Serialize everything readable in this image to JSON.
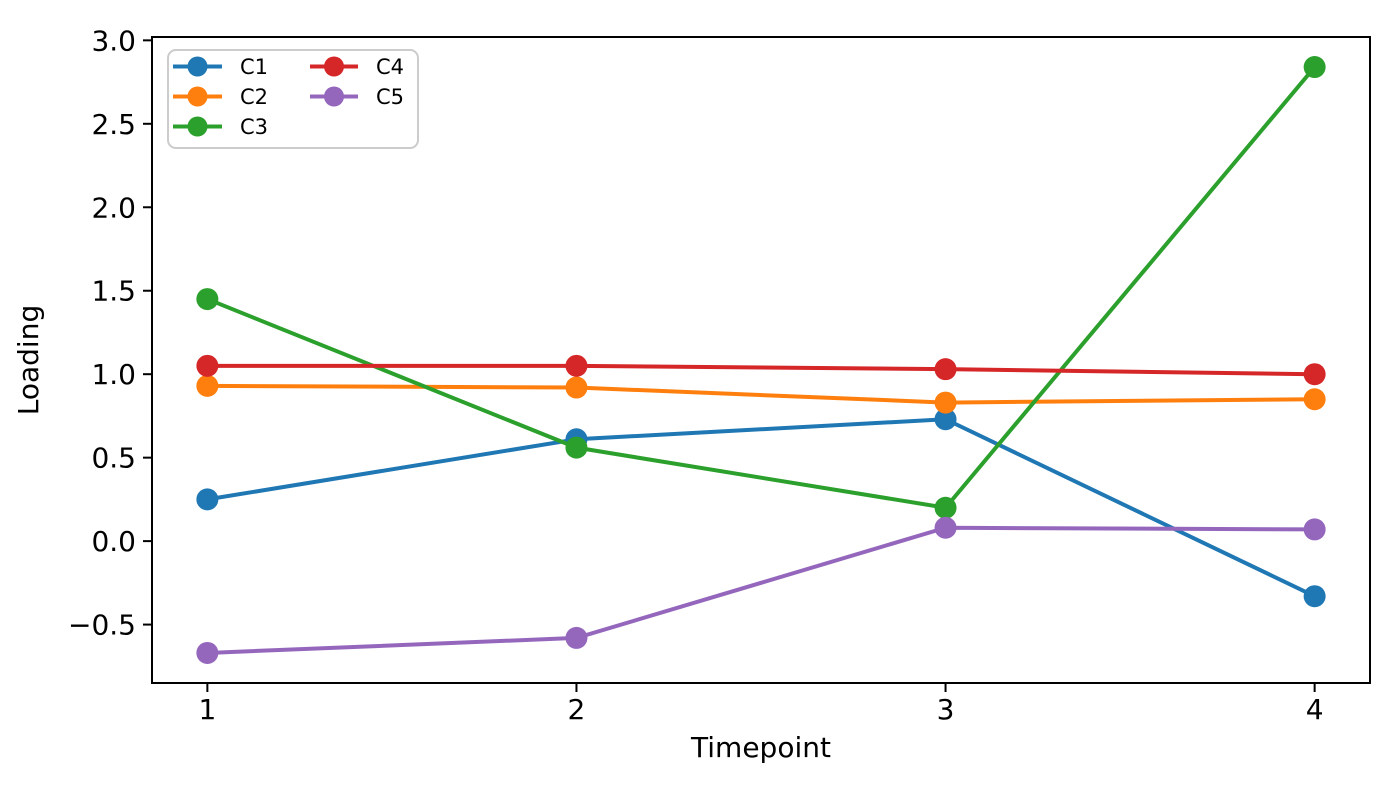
{
  "chart_data": {
    "type": "line",
    "x": [
      1,
      2,
      3,
      4
    ],
    "xlabel": "Timepoint",
    "ylabel": "Loading",
    "xlim": [
      0.85,
      4.15
    ],
    "ylim": [
      -0.85,
      3.02
    ],
    "xticks": [
      1,
      2,
      3,
      4
    ],
    "yticks": [
      -0.5,
      0.0,
      0.5,
      1.0,
      1.5,
      2.0,
      2.5,
      3.0
    ],
    "grid": false,
    "marker": "circle",
    "legend_position": "upper-left",
    "legend_columns": 2,
    "legend_edge_color": "#cccccc",
    "axis_color": "#000000",
    "background_color": "#ffffff",
    "series": [
      {
        "name": "C1",
        "color": "#1f77b4",
        "values": [
          0.25,
          0.61,
          0.73,
          -0.33
        ]
      },
      {
        "name": "C2",
        "color": "#ff7f0e",
        "values": [
          0.93,
          0.92,
          0.83,
          0.85
        ]
      },
      {
        "name": "C3",
        "color": "#2ca02c",
        "values": [
          1.45,
          0.56,
          0.2,
          2.84
        ]
      },
      {
        "name": "C4",
        "color": "#d62728",
        "values": [
          1.05,
          1.05,
          1.03,
          1.0
        ]
      },
      {
        "name": "C5",
        "color": "#9467bd",
        "values": [
          -0.67,
          -0.58,
          0.08,
          0.07
        ]
      }
    ]
  }
}
